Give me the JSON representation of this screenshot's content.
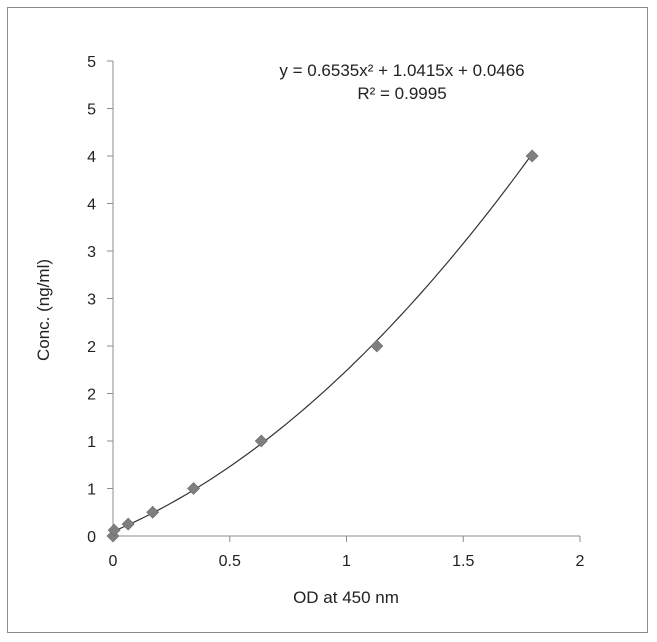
{
  "chart_data": {
    "type": "scatter",
    "xlabel": "OD at 450 nm",
    "ylabel": "Conc. (ng/ml)",
    "xlim": [
      0,
      2
    ],
    "ylim": [
      0,
      5
    ],
    "x_ticks": [
      {
        "value": 0,
        "label": "0"
      },
      {
        "value": 0.5,
        "label": "0.5"
      },
      {
        "value": 1,
        "label": "1"
      },
      {
        "value": 1.5,
        "label": "1.5"
      },
      {
        "value": 2,
        "label": "2"
      }
    ],
    "y_ticks": [
      {
        "value": 0,
        "label": "0"
      },
      {
        "value": 0.5,
        "label": "1"
      },
      {
        "value": 1,
        "label": "1"
      },
      {
        "value": 1.5,
        "label": "2"
      },
      {
        "value": 2,
        "label": "2"
      },
      {
        "value": 2.5,
        "label": "3"
      },
      {
        "value": 3,
        "label": "3"
      },
      {
        "value": 3.5,
        "label": "4"
      },
      {
        "value": 4,
        "label": "4"
      },
      {
        "value": 4.5,
        "label": "5"
      },
      {
        "value": 5,
        "label": "5"
      }
    ],
    "points": [
      {
        "x": 0.0,
        "y": 0.0
      },
      {
        "x": 0.005,
        "y": 0.0625
      },
      {
        "x": 0.065,
        "y": 0.125
      },
      {
        "x": 0.17,
        "y": 0.25
      },
      {
        "x": 0.345,
        "y": 0.5
      },
      {
        "x": 0.635,
        "y": 1.0
      },
      {
        "x": 1.13,
        "y": 2.0
      },
      {
        "x": 1.795,
        "y": 4.0
      }
    ],
    "trendline": {
      "type": "polynomial",
      "coefficients": [
        0.6535,
        1.0415,
        0.0466
      ],
      "x_range": [
        0,
        1.795
      ],
      "equation_label": "y = 0.6535x² + 1.0415x + 0.0466",
      "r2_label": "R² = 0.9995"
    },
    "marker_color": "#7f7f7f",
    "line_color": "#333333",
    "grid": false,
    "legend": "none"
  }
}
